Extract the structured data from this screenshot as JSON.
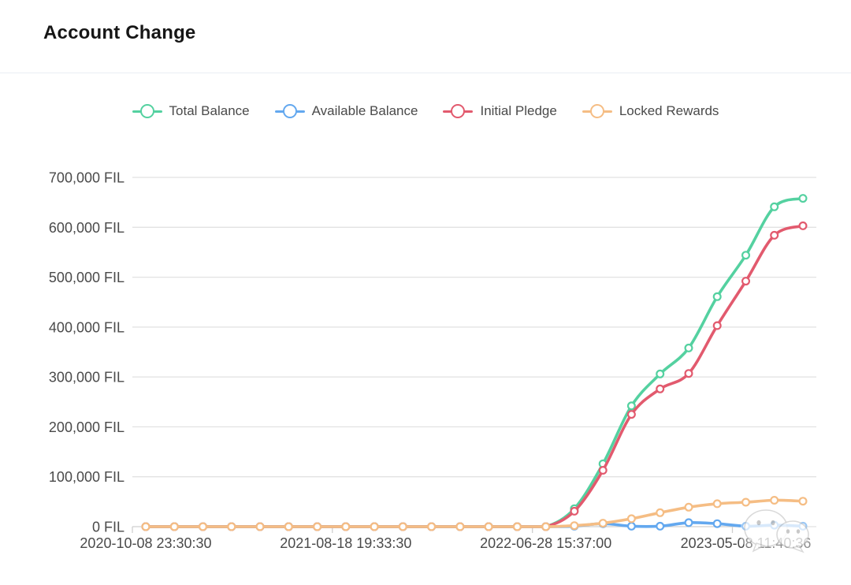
{
  "header": {
    "title": "Account Change"
  },
  "watermark": {
    "name": "wechat-logo-watermark"
  },
  "chart_data": {
    "type": "line",
    "title": "Account Change",
    "unit": "FIL",
    "smooth": true,
    "grid": true,
    "legend_position": "top",
    "ylim": [
      0,
      700000
    ],
    "y_tick_step": 100000,
    "y_tick_labels": [
      "0 FIL",
      "100,000 FIL",
      "200,000 FIL",
      "300,000 FIL",
      "400,000 FIL",
      "500,000 FIL",
      "600,000 FIL",
      "700,000 FIL"
    ],
    "x_point_count": 24,
    "x_tick_label_indices": [
      0,
      7,
      14,
      21
    ],
    "x_tick_labels": [
      "2020-10-08 23:30:30",
      "2021-08-18 19:33:30",
      "2022-06-28 15:37:00",
      "2023-05-08 11:40:36"
    ],
    "series": [
      {
        "name": "Total Balance",
        "color": "#54d1a0",
        "values": [
          0,
          0,
          0,
          0,
          0,
          0,
          0,
          0,
          0,
          0,
          0,
          0,
          0,
          0,
          0,
          36000,
          126000,
          242000,
          306000,
          358000,
          461000,
          544000,
          641000,
          658000
        ]
      },
      {
        "name": "Available Balance",
        "color": "#63a8ef",
        "values": [
          0,
          0,
          0,
          0,
          0,
          0,
          0,
          0,
          0,
          0,
          0,
          0,
          0,
          0,
          0,
          1000,
          6000,
          1000,
          1000,
          8000,
          6000,
          1000,
          3000,
          1000
        ]
      },
      {
        "name": "Initial Pledge",
        "color": "#e25a6e",
        "values": [
          0,
          0,
          0,
          0,
          0,
          0,
          0,
          0,
          0,
          0,
          0,
          0,
          0,
          0,
          0,
          31000,
          113000,
          225000,
          276000,
          307000,
          403000,
          492000,
          584000,
          603000
        ]
      },
      {
        "name": "Locked Rewards",
        "color": "#f5bd84",
        "values": [
          0,
          0,
          0,
          0,
          0,
          0,
          0,
          0,
          0,
          0,
          0,
          0,
          0,
          0,
          0,
          2000,
          7000,
          16000,
          28000,
          39000,
          46000,
          49000,
          53000,
          51000
        ]
      }
    ]
  }
}
